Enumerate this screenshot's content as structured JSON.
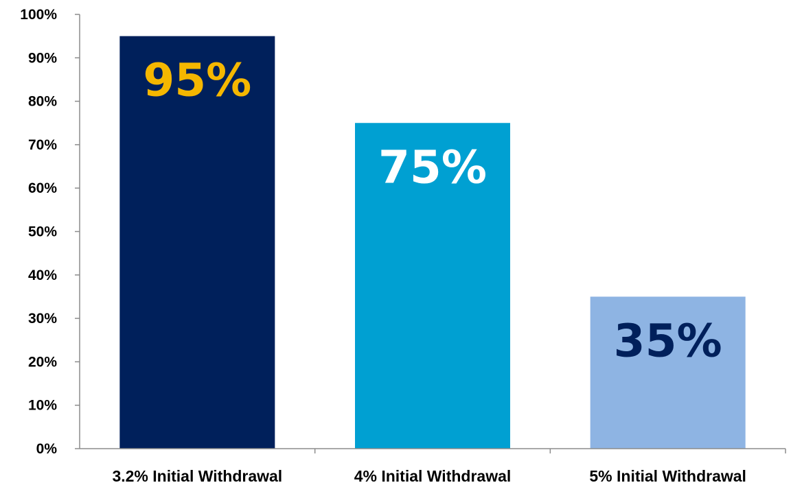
{
  "chart_data": {
    "type": "bar",
    "categories": [
      "3.2% Initial Withdrawal",
      "4% Initial Withdrawal",
      "5% Initial Withdrawal"
    ],
    "values": [
      95,
      75,
      35
    ],
    "data_labels": [
      "95%",
      "75%",
      "35%"
    ],
    "bar_colors": [
      "#00205b",
      "#00a0d2",
      "#8eb4e3"
    ],
    "label_colors": [
      "#f5b700",
      "#ffffff",
      "#00205b"
    ],
    "ylim": [
      0,
      100
    ],
    "yticks": [
      0,
      10,
      20,
      30,
      40,
      50,
      60,
      70,
      80,
      90,
      100
    ],
    "ytick_labels": [
      "0%",
      "10%",
      "20%",
      "30%",
      "40%",
      "50%",
      "60%",
      "70%",
      "80%",
      "90%",
      "100%"
    ],
    "grid": false,
    "legend": "none"
  }
}
